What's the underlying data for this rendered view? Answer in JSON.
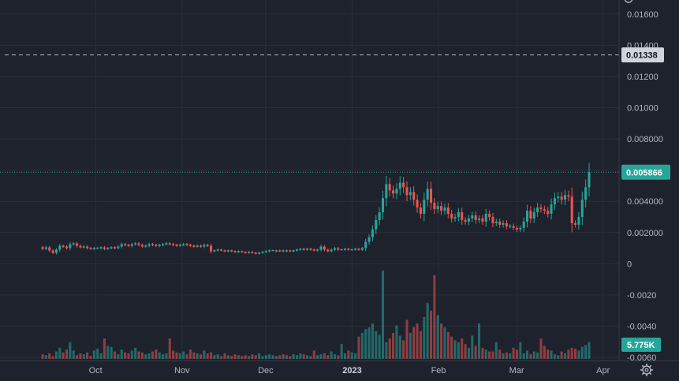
{
  "chart_data": {
    "type": "candlestick",
    "colors": {
      "background": "#1e222d",
      "grid": "#2a2e39",
      "up": "#26a69a",
      "down": "#ef5350",
      "axis_text": "#b2b5be",
      "price_line": "#26a69a",
      "order_line": "#b2b5be"
    },
    "y_axis": {
      "min": -0.0062,
      "max": 0.0169,
      "ticks": [
        {
          "value": 0.016,
          "label": "0.01600"
        },
        {
          "value": 0.014,
          "label": "0.01400"
        },
        {
          "value": 0.012,
          "label": "0.01200"
        },
        {
          "value": 0.01,
          "label": "0.01000"
        },
        {
          "value": 0.008,
          "label": "0.008000"
        },
        {
          "value": 0.006,
          "label": "0.006000"
        },
        {
          "value": 0.004,
          "label": "0.004000"
        },
        {
          "value": 0.002,
          "label": "0.002000"
        },
        {
          "value": 0.0,
          "label": "0"
        },
        {
          "value": -0.002,
          "label": "-0.0020"
        },
        {
          "value": -0.004,
          "label": "-0.0040"
        },
        {
          "value": -0.006,
          "label": "-0.0060"
        }
      ]
    },
    "x_axis": {
      "labels": [
        {
          "label": "Oct",
          "date": "2022-10-01",
          "bold": false
        },
        {
          "label": "Nov",
          "date": "2022-11-01",
          "bold": false
        },
        {
          "label": "Dec",
          "date": "2022-12-01",
          "bold": false
        },
        {
          "label": "2023",
          "date": "2023-01-01",
          "bold": true
        },
        {
          "label": "Feb",
          "date": "2023-02-01",
          "bold": false
        },
        {
          "label": "Mar",
          "date": "2023-03-01",
          "bold": false
        },
        {
          "label": "Apr",
          "date": "2023-04-01",
          "bold": false
        }
      ]
    },
    "dates": {
      "start": "2022-09-12",
      "end": "2023-03-27"
    },
    "horizontal_line": {
      "value": 0.01338,
      "label": "0.01338"
    },
    "last_price": {
      "value": 0.005866,
      "label": "0.005866"
    },
    "volume_badge": {
      "label": "5.775K"
    },
    "close": [
      0.00095,
      0.00105,
      0.00085,
      0.0007,
      0.0009,
      0.00115,
      0.0011,
      0.001,
      0.00125,
      0.0013,
      0.00115,
      0.00105,
      0.0011,
      0.001,
      0.00095,
      0.001,
      0.001,
      0.00105,
      0.00095,
      0.001,
      0.00105,
      0.001,
      0.0011,
      0.00125,
      0.0012,
      0.00115,
      0.00125,
      0.0013,
      0.0012,
      0.0011,
      0.00115,
      0.00125,
      0.0012,
      0.00115,
      0.0012,
      0.00125,
      0.0013,
      0.00125,
      0.0012,
      0.00115,
      0.0012,
      0.00125,
      0.0012,
      0.00115,
      0.0011,
      0.00115,
      0.0011,
      0.0012,
      0.00115,
      0.0008,
      0.00085,
      0.0009,
      0.00085,
      0.0008,
      0.00085,
      0.0008,
      0.00075,
      0.0008,
      0.00075,
      0.0007,
      0.00075,
      0.0007,
      0.00065,
      0.0007,
      0.00075,
      0.0008,
      0.00085,
      0.00085,
      0.0008,
      0.00085,
      0.0008,
      0.00085,
      0.0008,
      0.00085,
      0.0009,
      0.00095,
      0.0009,
      0.00095,
      0.0009,
      0.00085,
      0.0009,
      0.0011,
      0.0009,
      0.0008,
      0.0009,
      0.001,
      0.0009,
      0.0009,
      0.00095,
      0.0009,
      0.0009,
      0.00095,
      0.0009,
      0.001,
      0.0014,
      0.0017,
      0.0022,
      0.0028,
      0.0033,
      0.0042,
      0.0051,
      0.0047,
      0.0045,
      0.0048,
      0.0052,
      0.0049,
      0.0044,
      0.0046,
      0.0041,
      0.0036,
      0.0032,
      0.0041,
      0.0048,
      0.0039,
      0.0035,
      0.0037,
      0.0034,
      0.0036,
      0.0032,
      0.0029,
      0.003,
      0.0033,
      0.0028,
      0.0027,
      0.0029,
      0.0031,
      0.0028,
      0.0029,
      0.0027,
      0.0032,
      0.003,
      0.0026,
      0.0027,
      0.0025,
      0.0026,
      0.0024,
      0.0024,
      0.0023,
      0.0022,
      0.0023,
      0.0027,
      0.0034,
      0.0029,
      0.0033,
      0.0036,
      0.0035,
      0.0034,
      0.0032,
      0.0038,
      0.0042,
      0.0043,
      0.0041,
      0.0044,
      0.0043,
      0.0026,
      0.0025,
      0.003,
      0.0041,
      0.0049,
      0.005866
    ],
    "volume": [
      5,
      4,
      6,
      3,
      8,
      12,
      7,
      10,
      18,
      9,
      4,
      6,
      5,
      7,
      3,
      9,
      11,
      6,
      22,
      14,
      13,
      8,
      5,
      10,
      7,
      6,
      9,
      12,
      8,
      7,
      5,
      6,
      8,
      10,
      7,
      5,
      6,
      22,
      9,
      7,
      6,
      8,
      5,
      10,
      7,
      6,
      5,
      9,
      6,
      7,
      4,
      5,
      3,
      6,
      4,
      3,
      5,
      4,
      3,
      4,
      3,
      5,
      4,
      6,
      3,
      4,
      5,
      4,
      3,
      4,
      5,
      4,
      3,
      5,
      4,
      6,
      5,
      4,
      3,
      9,
      4,
      5,
      6,
      4,
      8,
      5,
      4,
      16,
      6,
      9,
      7,
      6,
      24,
      28,
      32,
      34,
      38,
      30,
      26,
      95,
      18,
      22,
      28,
      36,
      25,
      20,
      42,
      28,
      34,
      38,
      30,
      45,
      60,
      52,
      90,
      47,
      38,
      34,
      29,
      24,
      20,
      18,
      22,
      16,
      12,
      25,
      14,
      38,
      12,
      10,
      8,
      8,
      18,
      10,
      6,
      7,
      6,
      12,
      10,
      18,
      6,
      9,
      5,
      8,
      7,
      22,
      14,
      10,
      9,
      5,
      4,
      8,
      6,
      10,
      12,
      11,
      9,
      13,
      15,
      18
    ]
  }
}
